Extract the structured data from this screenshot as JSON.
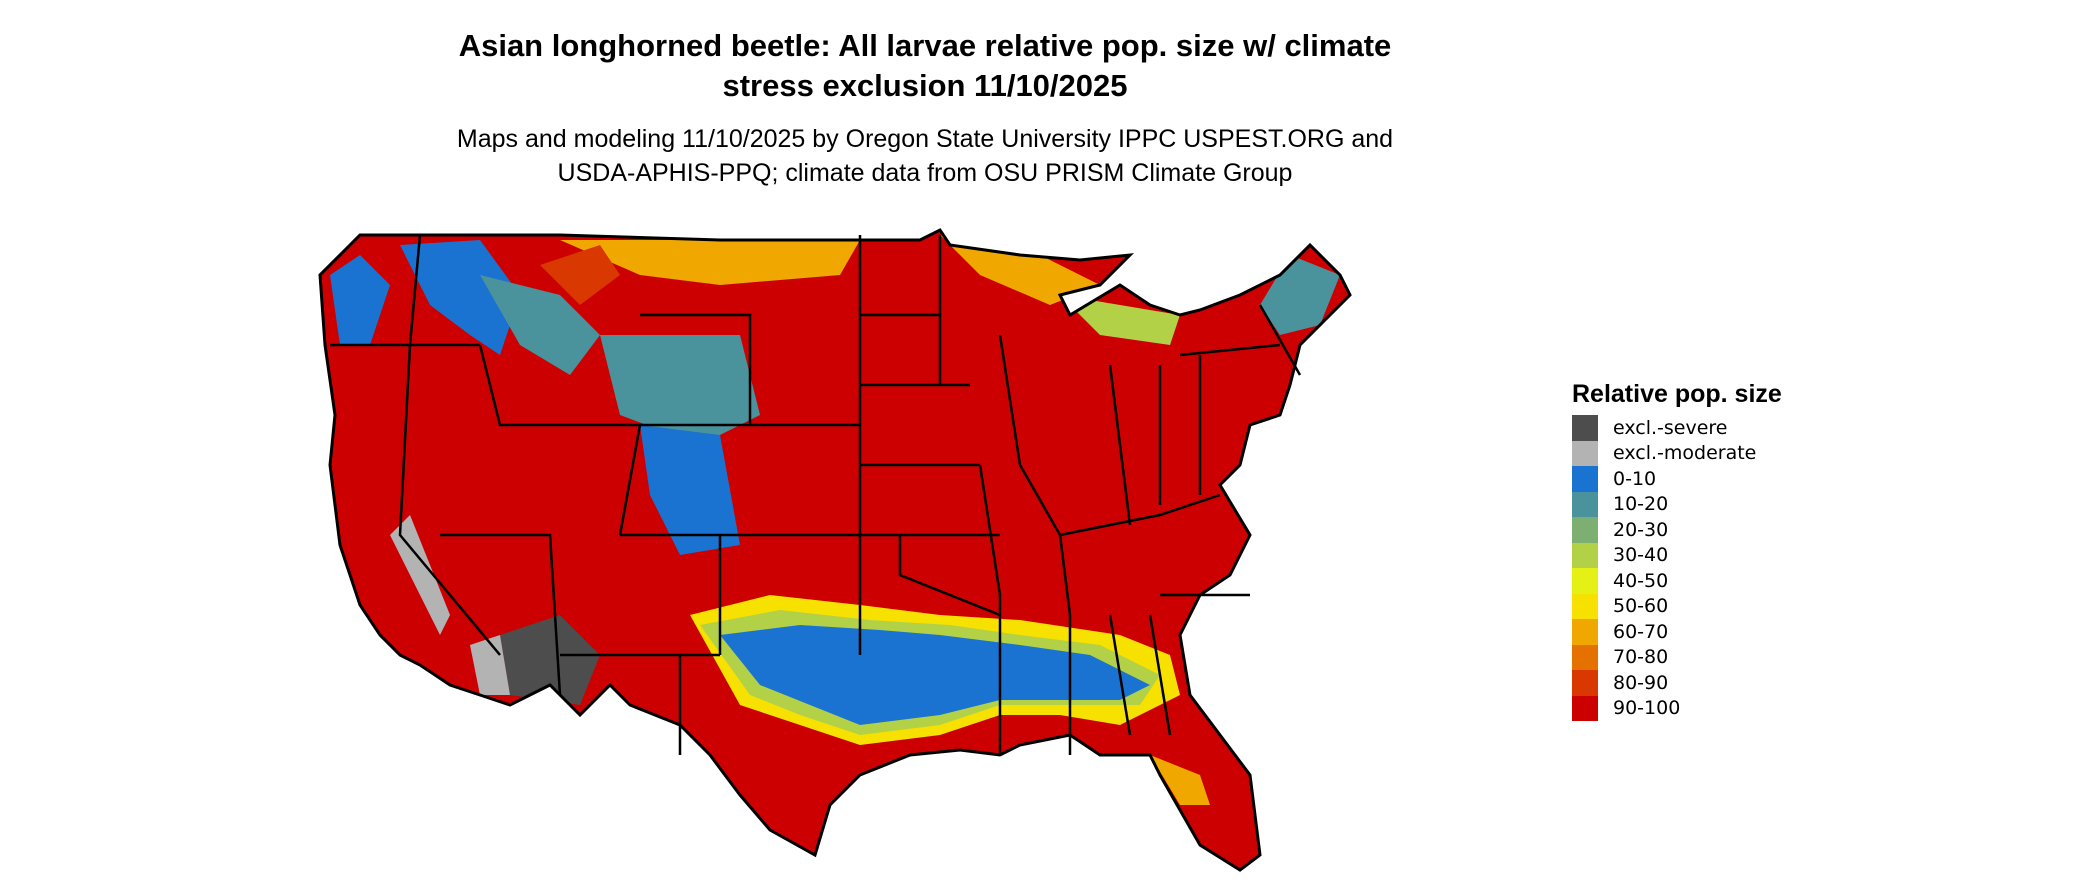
{
  "title_lines": [
    "Asian longhorned beetle: All larvae relative pop. size w/ climate",
    "stress exclusion 11/10/2025"
  ],
  "subtitle_lines": [
    "Maps and modeling 11/10/2025 by Oregon State University IPPC USPEST.ORG and",
    "USDA-APHIS-PPQ; climate data from OSU PRISM Climate Group"
  ],
  "map": {
    "region": "contiguous United States",
    "dominant_class": "90-100"
  },
  "legend": {
    "title": "Relative pop. size",
    "items": [
      {
        "label": "excl.-severe",
        "color": "#4d4d4d"
      },
      {
        "label": "excl.-moderate",
        "color": "#b3b3b3"
      },
      {
        "label": "0-10",
        "color": "#1a73d0"
      },
      {
        "label": "10-20",
        "color": "#4a929c"
      },
      {
        "label": "20-30",
        "color": "#7dae72"
      },
      {
        "label": "30-40",
        "color": "#b3d147"
      },
      {
        "label": "40-50",
        "color": "#e5f014"
      },
      {
        "label": "50-60",
        "color": "#f7e100"
      },
      {
        "label": "60-70",
        "color": "#f0a800"
      },
      {
        "label": "70-80",
        "color": "#e57200"
      },
      {
        "label": "80-90",
        "color": "#d93800"
      },
      {
        "label": "90-100",
        "color": "#cc0000"
      }
    ]
  }
}
